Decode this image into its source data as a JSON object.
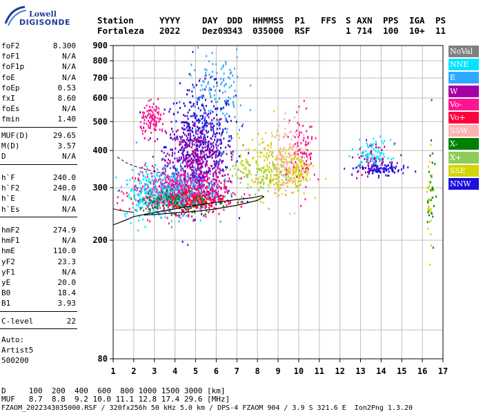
{
  "logo": {
    "line1": "Lowell",
    "line2": "DIGISONDE"
  },
  "header": {
    "labels": [
      {
        "text": "Station",
        "value": "Fortaleza"
      },
      {
        "text": "YYYY",
        "value": "2022"
      },
      {
        "text": "DAY",
        "value": "Dez09"
      },
      {
        "text": "DDD",
        "value": "343"
      },
      {
        "text": "HHMMSS",
        "value": "035000"
      },
      {
        "text": "P1",
        "value": "RSF"
      },
      {
        "text": "FFS",
        "value": ""
      },
      {
        "text": "S",
        "value": "1"
      },
      {
        "text": "AXN",
        "value": "714"
      },
      {
        "text": "PPS",
        "value": "100"
      },
      {
        "text": "IGA",
        "value": "10+"
      },
      {
        "text": "PS",
        "value": "11"
      }
    ]
  },
  "params": {
    "group1": [
      {
        "name": "foF2",
        "value": "8.300"
      },
      {
        "name": "foF1",
        "value": "N/A"
      },
      {
        "name": "foF1p",
        "value": "N/A"
      },
      {
        "name": "foE",
        "value": "N/A"
      },
      {
        "name": "foEp",
        "value": "0.53"
      },
      {
        "name": "fxI",
        "value": "8.60"
      },
      {
        "name": "foEs",
        "value": "N/A"
      },
      {
        "name": "fmin",
        "value": "1.40"
      }
    ],
    "group2": [
      {
        "name": "MUF(D)",
        "value": "29.65"
      },
      {
        "name": "M(D)",
        "value": "3.57"
      },
      {
        "name": "D",
        "value": "N/A"
      }
    ],
    "group3": [
      {
        "name": "h`F",
        "value": "240.0"
      },
      {
        "name": "h`F2",
        "value": "240.0"
      },
      {
        "name": "h`E",
        "value": "N/A"
      },
      {
        "name": "h`Es",
        "value": "N/A"
      }
    ],
    "group4": [
      {
        "name": "hmF2",
        "value": "274.9"
      },
      {
        "name": "hmF1",
        "value": "N/A"
      },
      {
        "name": "hmE",
        "value": "110.0"
      },
      {
        "name": "yF2",
        "value": "23.3"
      },
      {
        "name": "yF1",
        "value": "N/A"
      },
      {
        "name": "yE",
        "value": "20.0"
      },
      {
        "name": "B0",
        "value": "18.4"
      },
      {
        "name": "B1",
        "value": "3.93"
      }
    ],
    "group5": [
      {
        "name": "C-level",
        "value": "22"
      }
    ]
  },
  "auto": {
    "line1": "Auto:",
    "line2": "Artist5",
    "line3": "500200"
  },
  "legend": [
    {
      "label": "NoVal",
      "color": "#808080"
    },
    {
      "label": "NNE",
      "color": "#00e5ff"
    },
    {
      "label": "E",
      "color": "#2fa8ff"
    },
    {
      "label": "W",
      "color": "#a400a4"
    },
    {
      "label": "Vo-",
      "color": "#ff1493"
    },
    {
      "label": "Vo+",
      "color": "#ff003c"
    },
    {
      "label": "SSW",
      "color": "#ffb0b0"
    },
    {
      "label": "X-",
      "color": "#008000"
    },
    {
      "label": "X+",
      "color": "#8ccc5a"
    },
    {
      "label": "SSE",
      "color": "#d4d400"
    },
    {
      "label": "NNW",
      "color": "#1a10e0"
    }
  ],
  "chart_data": {
    "type": "scatter",
    "title": "",
    "xlabel": "",
    "ylabel": "",
    "xlim": [
      1,
      17
    ],
    "ylim": [
      80,
      900
    ],
    "x_ticks": [
      "1",
      "2",
      "3",
      "4",
      "5",
      "6",
      "7",
      "8",
      "9",
      "10",
      "11",
      "12",
      "13",
      "14",
      "15",
      "16",
      "17"
    ],
    "y_ticks": [
      "80",
      "200",
      "300",
      "400",
      "500",
      "600",
      "700",
      "800",
      "900"
    ],
    "y_scale": "log",
    "grid": true,
    "profile_curve": {
      "name": "",
      "points": [
        [
          1.0,
          225
        ],
        [
          1.5,
          232
        ],
        [
          2.0,
          240
        ],
        [
          3.0,
          248
        ],
        [
          4.0,
          255
        ],
        [
          5.0,
          262
        ],
        [
          6.0,
          268
        ],
        [
          7.0,
          274
        ],
        [
          7.8,
          278
        ],
        [
          8.2,
          282
        ],
        [
          8.3,
          280
        ],
        [
          8.0,
          272
        ],
        [
          7.0,
          262
        ],
        [
          6.0,
          255
        ],
        [
          5.0,
          250
        ],
        [
          4.0,
          247
        ],
        [
          3.0,
          244
        ],
        [
          2.5,
          243
        ]
      ]
    },
    "profile_upper_dashed": {
      "points": [
        [
          1.2,
          380
        ],
        [
          1.6,
          365
        ],
        [
          2.0,
          355
        ],
        [
          2.6,
          345
        ],
        [
          3.2,
          338
        ],
        [
          3.6,
          335
        ]
      ]
    },
    "profile_lower_solid": {
      "points": [
        [
          1.0,
          255
        ],
        [
          1.3,
          252
        ],
        [
          1.6,
          250
        ],
        [
          2.0,
          248
        ]
      ]
    },
    "echo_clusters": [
      {
        "color": "#1a10e0",
        "xc": 5.2,
        "yc": 420,
        "sx": 1.4,
        "sy": 0.22,
        "n": 520
      },
      {
        "color": "#a400a4",
        "xc": 5.0,
        "yc": 370,
        "sx": 1.2,
        "sy": 0.16,
        "n": 420
      },
      {
        "color": "#ff1493",
        "xc": 4.2,
        "yc": 295,
        "sx": 1.9,
        "sy": 0.08,
        "n": 520
      },
      {
        "color": "#ff003c",
        "xc": 4.5,
        "yc": 275,
        "sx": 1.6,
        "sy": 0.05,
        "n": 320
      },
      {
        "color": "#00e5ff",
        "xc": 3.0,
        "yc": 285,
        "sx": 1.3,
        "sy": 0.09,
        "n": 240
      },
      {
        "color": "#2fa8ff",
        "xc": 4.0,
        "yc": 300,
        "sx": 1.6,
        "sy": 0.1,
        "n": 200
      },
      {
        "color": "#d4d400",
        "xc": 8.5,
        "yc": 355,
        "sx": 1.2,
        "sy": 0.12,
        "n": 200
      },
      {
        "color": "#ffb0b0",
        "xc": 9.5,
        "yc": 380,
        "sx": 0.7,
        "sy": 0.14,
        "n": 160
      },
      {
        "color": "#008000",
        "xc": 4.0,
        "yc": 270,
        "sx": 1.5,
        "sy": 0.05,
        "n": 90
      },
      {
        "color": "#8ccc5a",
        "xc": 8.0,
        "yc": 330,
        "sx": 1.4,
        "sy": 0.08,
        "n": 80
      },
      {
        "color": "#ff1493",
        "xc": 2.9,
        "yc": 510,
        "sx": 0.5,
        "sy": 0.06,
        "n": 110
      },
      {
        "color": "#2fa8ff",
        "xc": 6.0,
        "yc": 620,
        "sx": 1.2,
        "sy": 0.18,
        "n": 120
      },
      {
        "color": "#a400a4",
        "xc": 13.5,
        "yc": 375,
        "sx": 0.8,
        "sy": 0.06,
        "n": 90
      },
      {
        "color": "#00e5ff",
        "xc": 13.6,
        "yc": 390,
        "sx": 0.7,
        "sy": 0.06,
        "n": 70
      },
      {
        "color": "#1a10e0",
        "xc": 14.0,
        "yc": 348,
        "sx": 1.0,
        "sy": 0.02,
        "n": 80
      },
      {
        "color": "#d4d400",
        "xc": 10.0,
        "yc": 345,
        "sx": 0.5,
        "sy": 0.07,
        "n": 90
      },
      {
        "color": "#ff1493",
        "xc": 10.2,
        "yc": 400,
        "sx": 0.5,
        "sy": 0.15,
        "n": 80
      },
      {
        "color": "#008000",
        "xc": 16.4,
        "yc": 300,
        "sx": 0.15,
        "sy": 0.25,
        "n": 30
      },
      {
        "color": "#d4d400",
        "xc": 16.3,
        "yc": 270,
        "sx": 0.12,
        "sy": 0.2,
        "n": 25
      }
    ]
  },
  "footer": {
    "line1": "D     100  200  400  600  800 1000 1500 3000 [km]",
    "line2": "MUF   8.7  8.8  9.2 10.0 11.1 12.8 17.4 29.6 [MHz]",
    "line3": "FZAOM_2022343035000.RSF / 320fx256h 50 kHz 5.0 km / DPS-4 FZAOM 904 / 3.9 S 321.6 E  Ion2Png 1.3.20"
  }
}
